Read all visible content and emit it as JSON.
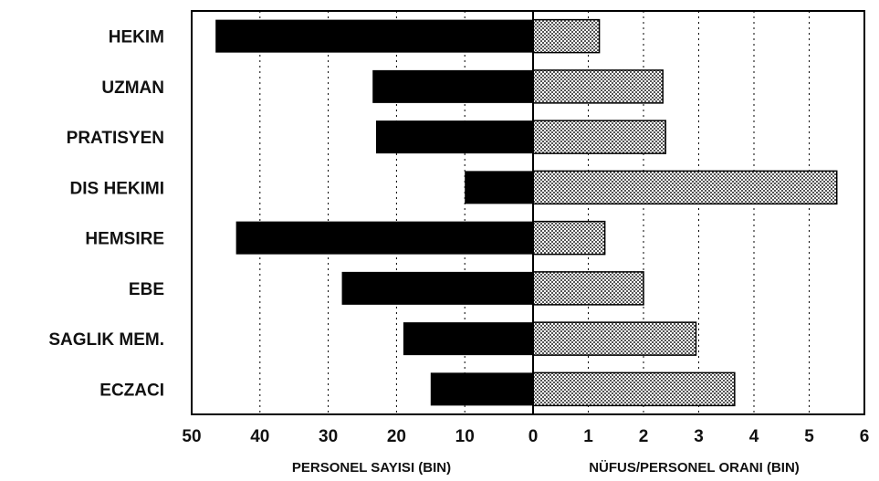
{
  "chart_data": {
    "type": "bar",
    "categories": [
      "HEKIM",
      "UZMAN",
      "PRATISYEN",
      "DIS HEKIMI",
      "HEMSIRE",
      "EBE",
      "SAGLIK MEM.",
      "ECZACI"
    ],
    "series": [
      {
        "name": "",
        "values": [
          46.5,
          23.5,
          23,
          10,
          43.5,
          28,
          19,
          15
        ],
        "color": "#000000"
      },
      {
        "name": "",
        "values": [
          1.2,
          2.35,
          2.4,
          5.5,
          1.3,
          2.0,
          2.95,
          3.65
        ],
        "color": "#d9d9d9"
      }
    ],
    "left_axis": {
      "label": "PERSONEL SAYISI (BIN)",
      "ticks": [
        "50",
        "40",
        "30",
        "20",
        "10",
        "0"
      ],
      "range": [
        50,
        0
      ]
    },
    "right_axis": {
      "label": "NÜFUS/PERSONEL ORANI (BIN)",
      "ticks": [
        "0",
        "1",
        "2",
        "3",
        "4",
        "5",
        "6"
      ],
      "range": [
        0,
        6
      ]
    },
    "grid": "vertical-dashed",
    "title": ""
  }
}
